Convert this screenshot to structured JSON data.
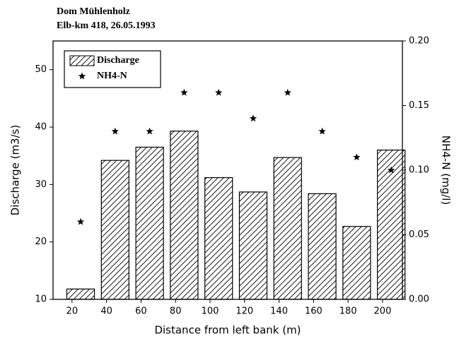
{
  "chart_data": {
    "type": "bar",
    "title": "Dom Mühlenholz",
    "subtitle": "Elb-km 418, 26.05.1993",
    "x_label": "Distance from left bank (m)",
    "y_label": "Discharge (m3/s)",
    "y2_label": "NH4-N  (mg/l)",
    "x": [
      25,
      45,
      65,
      85,
      105,
      125,
      145,
      165,
      185,
      205
    ],
    "bar_width": 16,
    "series": [
      {
        "name": "Discharge",
        "type": "bar",
        "color": "#000000",
        "values": [
          11.8,
          34.2,
          36.5,
          39.3,
          31.2,
          28.7,
          34.7,
          28.4,
          22.7,
          36.0
        ]
      },
      {
        "name": "NH4-N",
        "type": "scatter",
        "axis": "y2",
        "color": "#000000",
        "values": [
          0.06,
          0.13,
          0.13,
          0.16,
          0.16,
          0.14,
          0.16,
          0.13,
          0.11,
          0.1
        ]
      }
    ],
    "xlim": [
      9,
      211.5
    ],
    "xticks": [
      20,
      40,
      60,
      80,
      100,
      120,
      140,
      160,
      180,
      200
    ],
    "ylim": [
      10,
      55
    ],
    "yticks": [
      10,
      20,
      30,
      40,
      50
    ],
    "y2lim": [
      0,
      0.2
    ],
    "y2ticks": [
      {
        "value": 0,
        "label": "0.00"
      },
      {
        "value": 0.05,
        "label": "0.05"
      },
      {
        "value": 0.1,
        "label": "0.10"
      },
      {
        "value": 0.15,
        "label": "0.15"
      },
      {
        "value": 0.2,
        "label": "0.20"
      }
    ],
    "legend": "top-left"
  }
}
